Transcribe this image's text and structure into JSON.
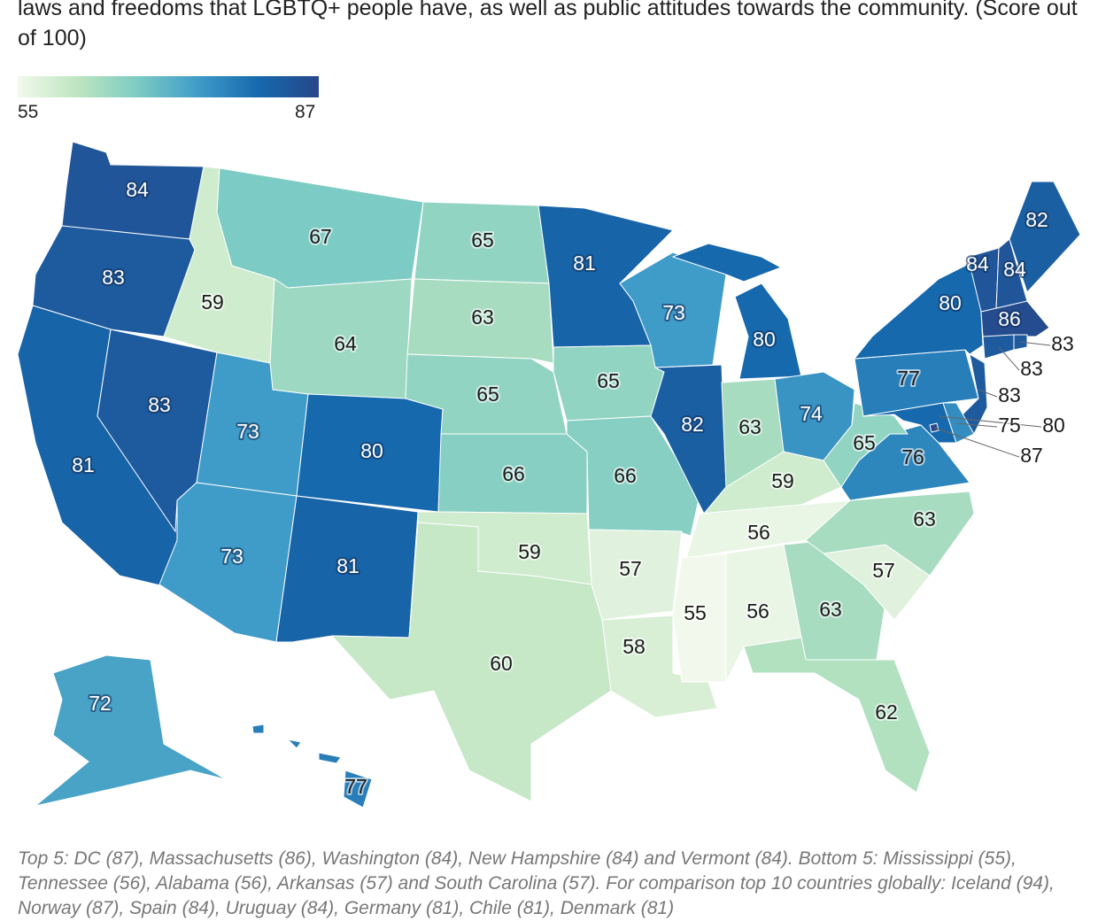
{
  "title": "laws and freedoms that LGBTQ+ people have, as well as public attitudes towards the community. (Score out of 100)",
  "legend": {
    "min": "55",
    "max": "87",
    "colors": [
      "#f2f9ec",
      "#bde5bf",
      "#7ccbc4",
      "#3f9bc8",
      "#1669ad",
      "#27478a"
    ]
  },
  "caption": "Top 5: DC (87), Massachusetts (86), Washington (84), New Hampshire (84) and Vermont (84). Bottom 5: Mississippi (55), Tennessee (56), Alabama (56), Arkansas (57) and South Carolina (57). For comparison top 10 countries globally: Iceland (94), Norway (87), Spain (84), Uruguay (84), Germany (81), Chile (81), Denmark (81)",
  "chart_data": {
    "type": "choropleth",
    "scale": {
      "min": 55,
      "max": 87
    },
    "regions": [
      {
        "id": "WA",
        "value": 84
      },
      {
        "id": "OR",
        "value": 83
      },
      {
        "id": "CA",
        "value": 81
      },
      {
        "id": "NV",
        "value": 83
      },
      {
        "id": "ID",
        "value": 59
      },
      {
        "id": "MT",
        "value": 67
      },
      {
        "id": "WY",
        "value": 64
      },
      {
        "id": "UT",
        "value": 73
      },
      {
        "id": "CO",
        "value": 80
      },
      {
        "id": "AZ",
        "value": 73
      },
      {
        "id": "NM",
        "value": 81
      },
      {
        "id": "ND",
        "value": 65
      },
      {
        "id": "SD",
        "value": 63
      },
      {
        "id": "NE",
        "value": 65
      },
      {
        "id": "KS",
        "value": 66
      },
      {
        "id": "OK",
        "value": 59
      },
      {
        "id": "TX",
        "value": 60
      },
      {
        "id": "MN",
        "value": 81
      },
      {
        "id": "IA",
        "value": 65
      },
      {
        "id": "MO",
        "value": 66
      },
      {
        "id": "AR",
        "value": 57
      },
      {
        "id": "LA",
        "value": 58
      },
      {
        "id": "WI",
        "value": 73
      },
      {
        "id": "IL",
        "value": 82
      },
      {
        "id": "MI",
        "value": 80
      },
      {
        "id": "IN",
        "value": 63
      },
      {
        "id": "OH",
        "value": 74
      },
      {
        "id": "KY",
        "value": 59
      },
      {
        "id": "TN",
        "value": 56
      },
      {
        "id": "MS",
        "value": 55
      },
      {
        "id": "AL",
        "value": 56
      },
      {
        "id": "GA",
        "value": 63
      },
      {
        "id": "FL",
        "value": 62
      },
      {
        "id": "SC",
        "value": 57
      },
      {
        "id": "NC",
        "value": 63
      },
      {
        "id": "VA",
        "value": 76
      },
      {
        "id": "WV",
        "value": 65
      },
      {
        "id": "PA",
        "value": 77
      },
      {
        "id": "NY",
        "value": 80
      },
      {
        "id": "NJ",
        "value": 83
      },
      {
        "id": "MD",
        "value": 80
      },
      {
        "id": "DE",
        "value": 75
      },
      {
        "id": "DC",
        "value": 87
      },
      {
        "id": "VT",
        "value": 84
      },
      {
        "id": "NH",
        "value": 84
      },
      {
        "id": "ME",
        "value": 82
      },
      {
        "id": "MA",
        "value": 86
      },
      {
        "id": "CT",
        "value": 83
      },
      {
        "id": "RI",
        "value": 83
      },
      {
        "id": "AK",
        "value": 72
      },
      {
        "id": "HI",
        "value": 77
      }
    ]
  }
}
